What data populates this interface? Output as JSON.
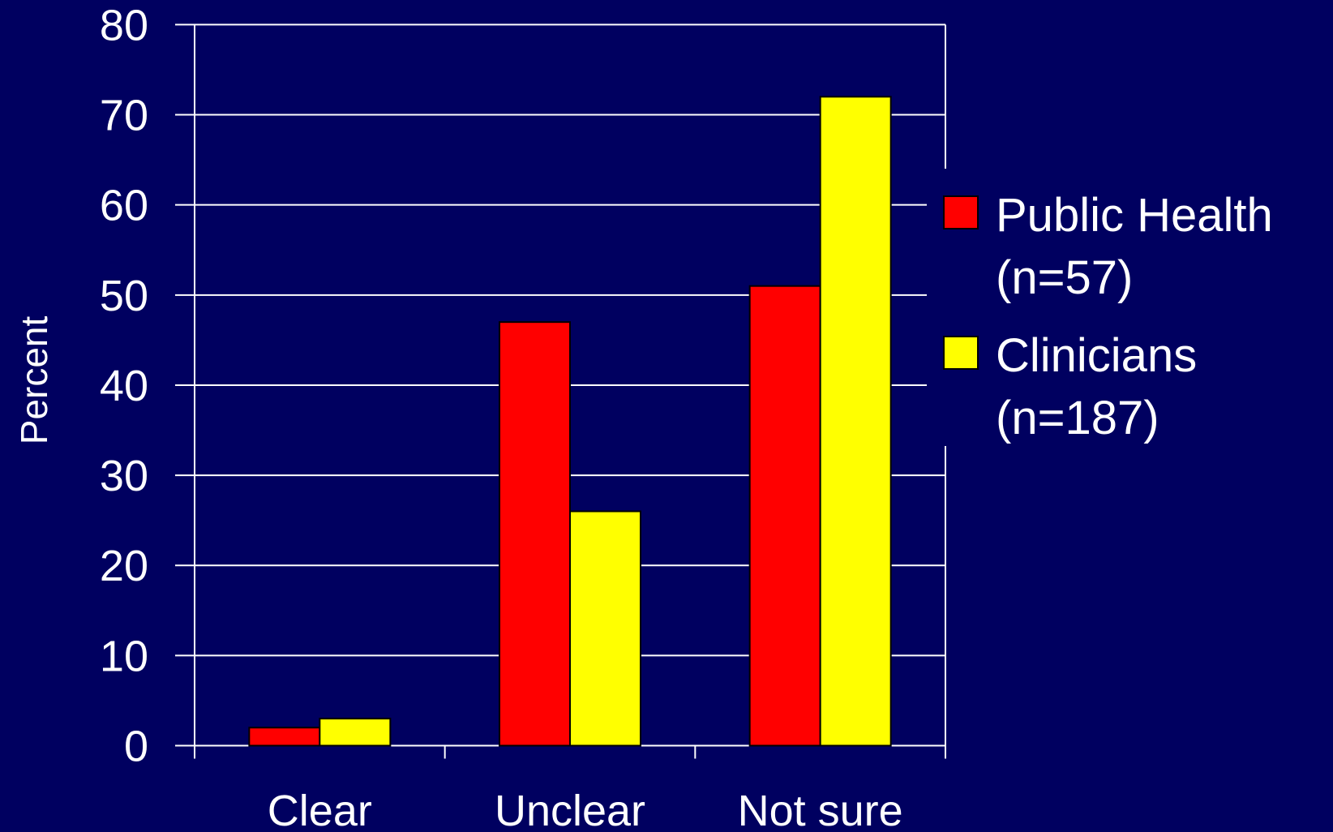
{
  "chart_data": {
    "type": "bar",
    "y_label": "Percent",
    "categories": [
      "Clear",
      "Unclear",
      "Not sure"
    ],
    "series": [
      {
        "name": "Public Health (n=57)",
        "color": "#ff0000",
        "values": [
          2,
          47,
          51
        ]
      },
      {
        "name": "Clinicians (n=187)",
        "color": "#ffff00",
        "values": [
          3,
          26,
          72
        ]
      }
    ],
    "ylim": [
      0,
      80
    ],
    "yticks": [
      0,
      10,
      20,
      30,
      40,
      50,
      60,
      70,
      80
    ],
    "grid": true,
    "legend": "right"
  }
}
